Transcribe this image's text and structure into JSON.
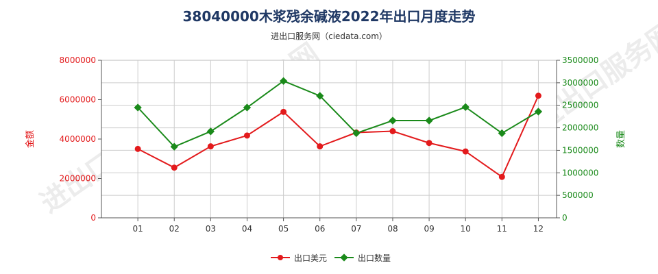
{
  "title": "38040000木浆残余碱液2022年出口月度走势",
  "subtitle": "进出口服务网（ciedata.com）",
  "watermark": "进出口服务网",
  "chart_data": {
    "type": "line",
    "categories": [
      "01",
      "02",
      "03",
      "04",
      "05",
      "06",
      "07",
      "08",
      "09",
      "10",
      "11",
      "12"
    ],
    "y_left": {
      "label": "金额",
      "min": 0,
      "max": 8000000,
      "ticks": [
        "0",
        "2000000",
        "4000000",
        "6000000",
        "8000000"
      ],
      "color": "#e31a1c"
    },
    "y_right": {
      "label": "数量",
      "min": 0,
      "max": 3500000,
      "ticks": [
        "0",
        "500000",
        "1000000",
        "1500000",
        "2000000",
        "2500000",
        "3000000",
        "3500000"
      ],
      "color": "#1a8a1a"
    },
    "series": [
      {
        "name": "出口美元",
        "axis": "left",
        "color": "#e31a1c",
        "values": [
          3500000,
          2550000,
          3630000,
          4180000,
          5380000,
          3630000,
          4330000,
          4400000,
          3800000,
          3370000,
          2080000,
          6200000
        ]
      },
      {
        "name": "出口数量",
        "axis": "right",
        "color": "#1a8a1a",
        "values": [
          2450000,
          1580000,
          1920000,
          2450000,
          3040000,
          2710000,
          1880000,
          2160000,
          2160000,
          2460000,
          1880000,
          2360000
        ]
      }
    ],
    "grid": true,
    "legend": "bottom-center"
  }
}
